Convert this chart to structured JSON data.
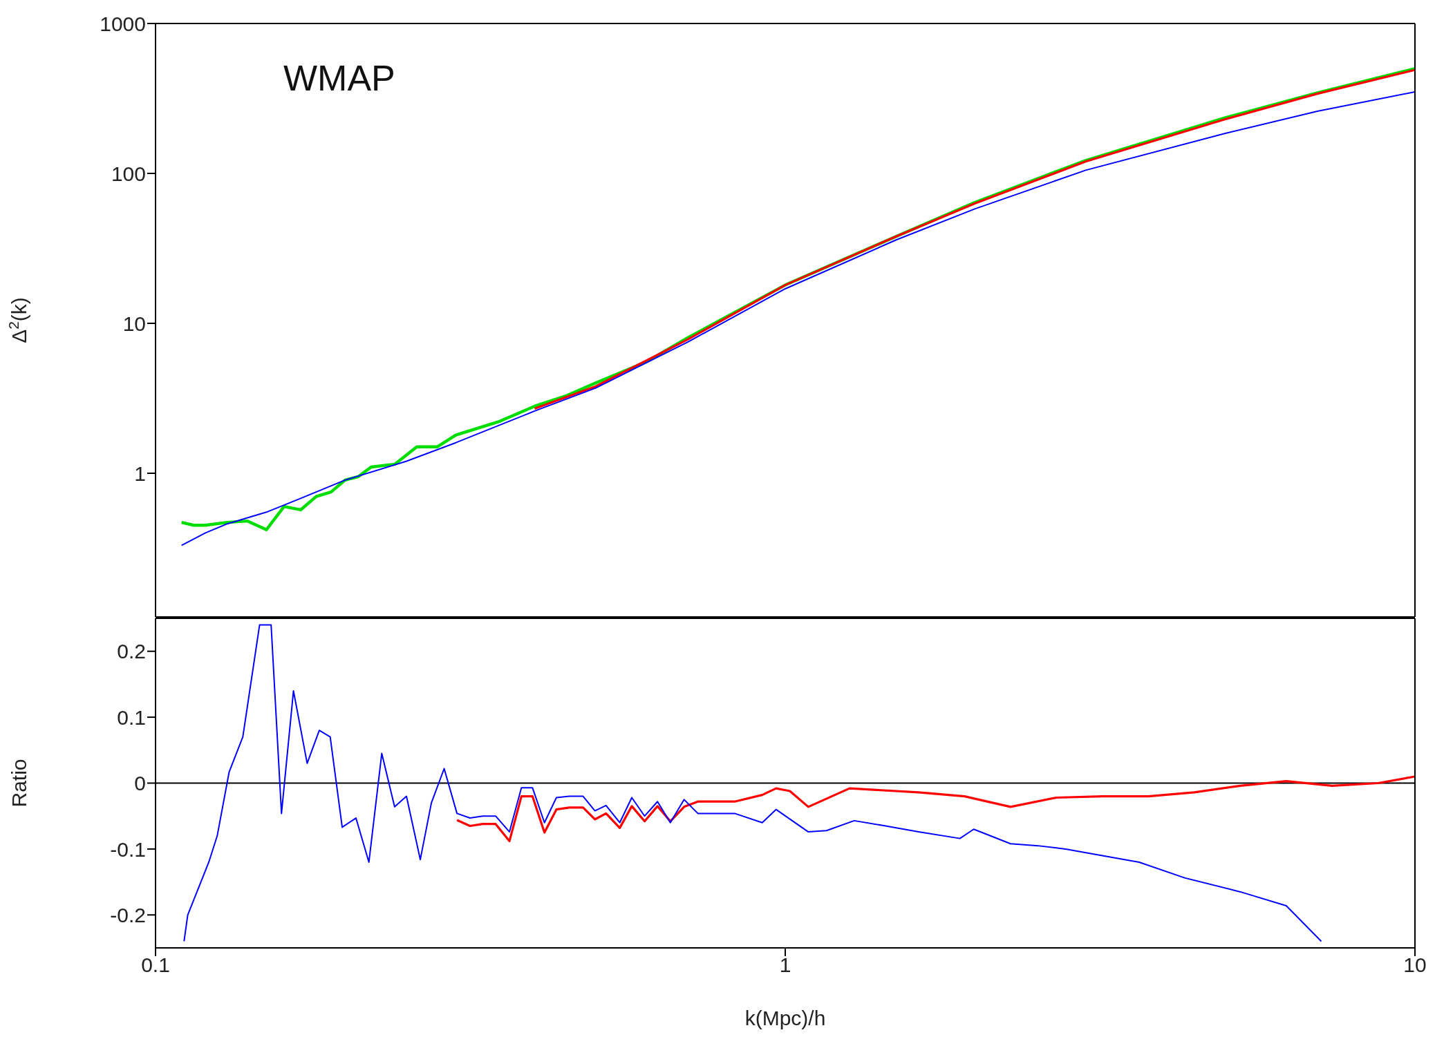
{
  "chart_data": [
    {
      "type": "line",
      "ylabel": "Δ$^{2}$(k)",
      "annotations": [
        "WMAP"
      ],
      "log": "xy",
      "xlim": [
        0.1,
        10
      ],
      "xticks": [
        0.1,
        1,
        10
      ],
      "ylim": [
        0.11,
        1000
      ],
      "yticks": [
        1,
        10,
        100,
        1000
      ],
      "tick_labels": "y",
      "marker": "none",
      "line_style": "solid",
      "series": [
        {
          "color": "#00dd00",
          "x": [
            0.11,
            0.115,
            0.12,
            0.13,
            0.14,
            0.15,
            0.16,
            0.17,
            0.18,
            0.19,
            0.2,
            0.21,
            0.22,
            0.24,
            0.26,
            0.28,
            0.3,
            0.35,
            0.4,
            0.45,
            0.5,
            0.6,
            0.7,
            1,
            1.5,
            2,
            3,
            5,
            7,
            10
          ],
          "values": [
            0.47,
            0.45,
            0.45,
            0.47,
            0.48,
            0.42,
            0.6,
            0.57,
            0.7,
            0.75,
            0.9,
            0.95,
            1.1,
            1.15,
            1.5,
            1.5,
            1.8,
            2.2,
            2.8,
            3.3,
            4,
            5.5,
            8,
            18,
            38,
            64,
            122,
            235,
            345,
            500
          ]
        },
        {
          "color": "#ff0000",
          "x": [
            0.4,
            0.5,
            0.7,
            1,
            1.5,
            2,
            3,
            5,
            7,
            10
          ],
          "values": [
            2.7,
            3.8,
            7.8,
            18,
            38,
            63,
            120,
            230,
            340,
            490
          ]
        },
        {
          "color": "#0000ff",
          "x": [
            0.11,
            0.12,
            0.13,
            0.15,
            0.17,
            0.2,
            0.25,
            0.3,
            0.4,
            0.5,
            0.7,
            1,
            1.5,
            2,
            3,
            5,
            7,
            10
          ],
          "values": [
            0.33,
            0.4,
            0.46,
            0.55,
            0.68,
            0.9,
            1.2,
            1.6,
            2.6,
            3.7,
            7.5,
            17,
            36,
            58,
            105,
            185,
            260,
            350
          ]
        }
      ]
    },
    {
      "type": "line",
      "ylabel": "Ratio",
      "xlabel": "k(Mpc)/h",
      "log": "x",
      "xlim": [
        0.1,
        10
      ],
      "xticks": [
        0.1,
        1,
        10
      ],
      "ylim": [
        -0.25,
        0.25
      ],
      "yticks": [
        -0.2,
        -0.1,
        0,
        0.1,
        0.2
      ],
      "marker": "none",
      "line_style": "solid",
      "ref_lines": [
        {
          "axis": "y",
          "value": 0,
          "color": "#000000"
        }
      ],
      "series": [
        {
          "color": "#ff0000",
          "x": [
            0.3011,
            0.3157,
            0.3309,
            0.3468,
            0.3648,
            0.3811,
            0.3968,
            0.4146,
            0.4331,
            0.454,
            0.4775,
            0.4986,
            0.5193,
            0.546,
            0.5706,
            0.598,
            0.6268,
            0.6569,
            0.6909,
            0.7265,
            0.8312,
            0.9193,
            0.9669,
            1.017,
            1.088,
            1.265,
            1.628,
            1.926,
            2.279,
            2.696,
            3.189,
            3.772,
            4.462,
            5.281,
            6.246,
            7.389,
            8.743,
            10
          ],
          "values": [
            -0.056,
            -0.065,
            -0.062,
            -0.062,
            -0.088,
            -0.02,
            -0.02,
            -0.075,
            -0.04,
            -0.037,
            -0.037,
            -0.055,
            -0.046,
            -0.068,
            -0.035,
            -0.058,
            -0.035,
            -0.058,
            -0.036,
            -0.028,
            -0.028,
            -0.018,
            -0.008,
            -0.012,
            -0.036,
            -0.008,
            -0.014,
            -0.02,
            -0.036,
            -0.022,
            -0.02,
            -0.02,
            -0.014,
            -0.004,
            0.003,
            -0.004,
            0,
            0.01
          ]
        },
        {
          "color": "#0000ff",
          "x": [
            0.111,
            0.1125,
            0.1215,
            0.1253,
            0.1309,
            0.1376,
            0.1463,
            0.1526,
            0.1585,
            0.1656,
            0.1741,
            0.182,
            0.1894,
            0.1979,
            0.2081,
            0.2182,
            0.2287,
            0.2397,
            0.2503,
            0.2633,
            0.2742,
            0.2873,
            0.3011,
            0.3157,
            0.3309,
            0.3468,
            0.3648,
            0.3811,
            0.3968,
            0.4146,
            0.4331,
            0.454,
            0.4775,
            0.4986,
            0.5193,
            0.546,
            0.5706,
            0.598,
            0.6268,
            0.6569,
            0.6909,
            0.7265,
            0.7771,
            0.8312,
            0.9193,
            0.9669,
            1.088,
            1.163,
            1.287,
            1.423,
            1.628,
            1.894,
            1.992,
            2.279,
            2.52,
            2.788,
            3.189,
            3.648,
            4.315,
            5.281,
            6.246,
            7.1
          ],
          "values": [
            -0.24,
            -0.2,
            -0.12,
            -0.08,
            0.017,
            0.07,
            0.24,
            0.24,
            -0.046,
            0.14,
            0.03,
            0.08,
            0.07,
            -0.067,
            -0.053,
            -0.12,
            0.045,
            -0.036,
            -0.02,
            -0.116,
            -0.03,
            0.022,
            -0.046,
            -0.053,
            -0.05,
            -0.05,
            -0.074,
            -0.007,
            -0.007,
            -0.06,
            -0.022,
            -0.02,
            -0.02,
            -0.042,
            -0.034,
            -0.06,
            -0.022,
            -0.05,
            -0.028,
            -0.06,
            -0.025,
            -0.046,
            -0.046,
            -0.046,
            -0.06,
            -0.04,
            -0.074,
            -0.072,
            -0.057,
            -0.064,
            -0.074,
            -0.084,
            -0.07,
            -0.092,
            -0.095,
            -0.1,
            -0.11,
            -0.12,
            -0.144,
            -0.165,
            -0.186,
            -0.24
          ]
        }
      ]
    }
  ]
}
